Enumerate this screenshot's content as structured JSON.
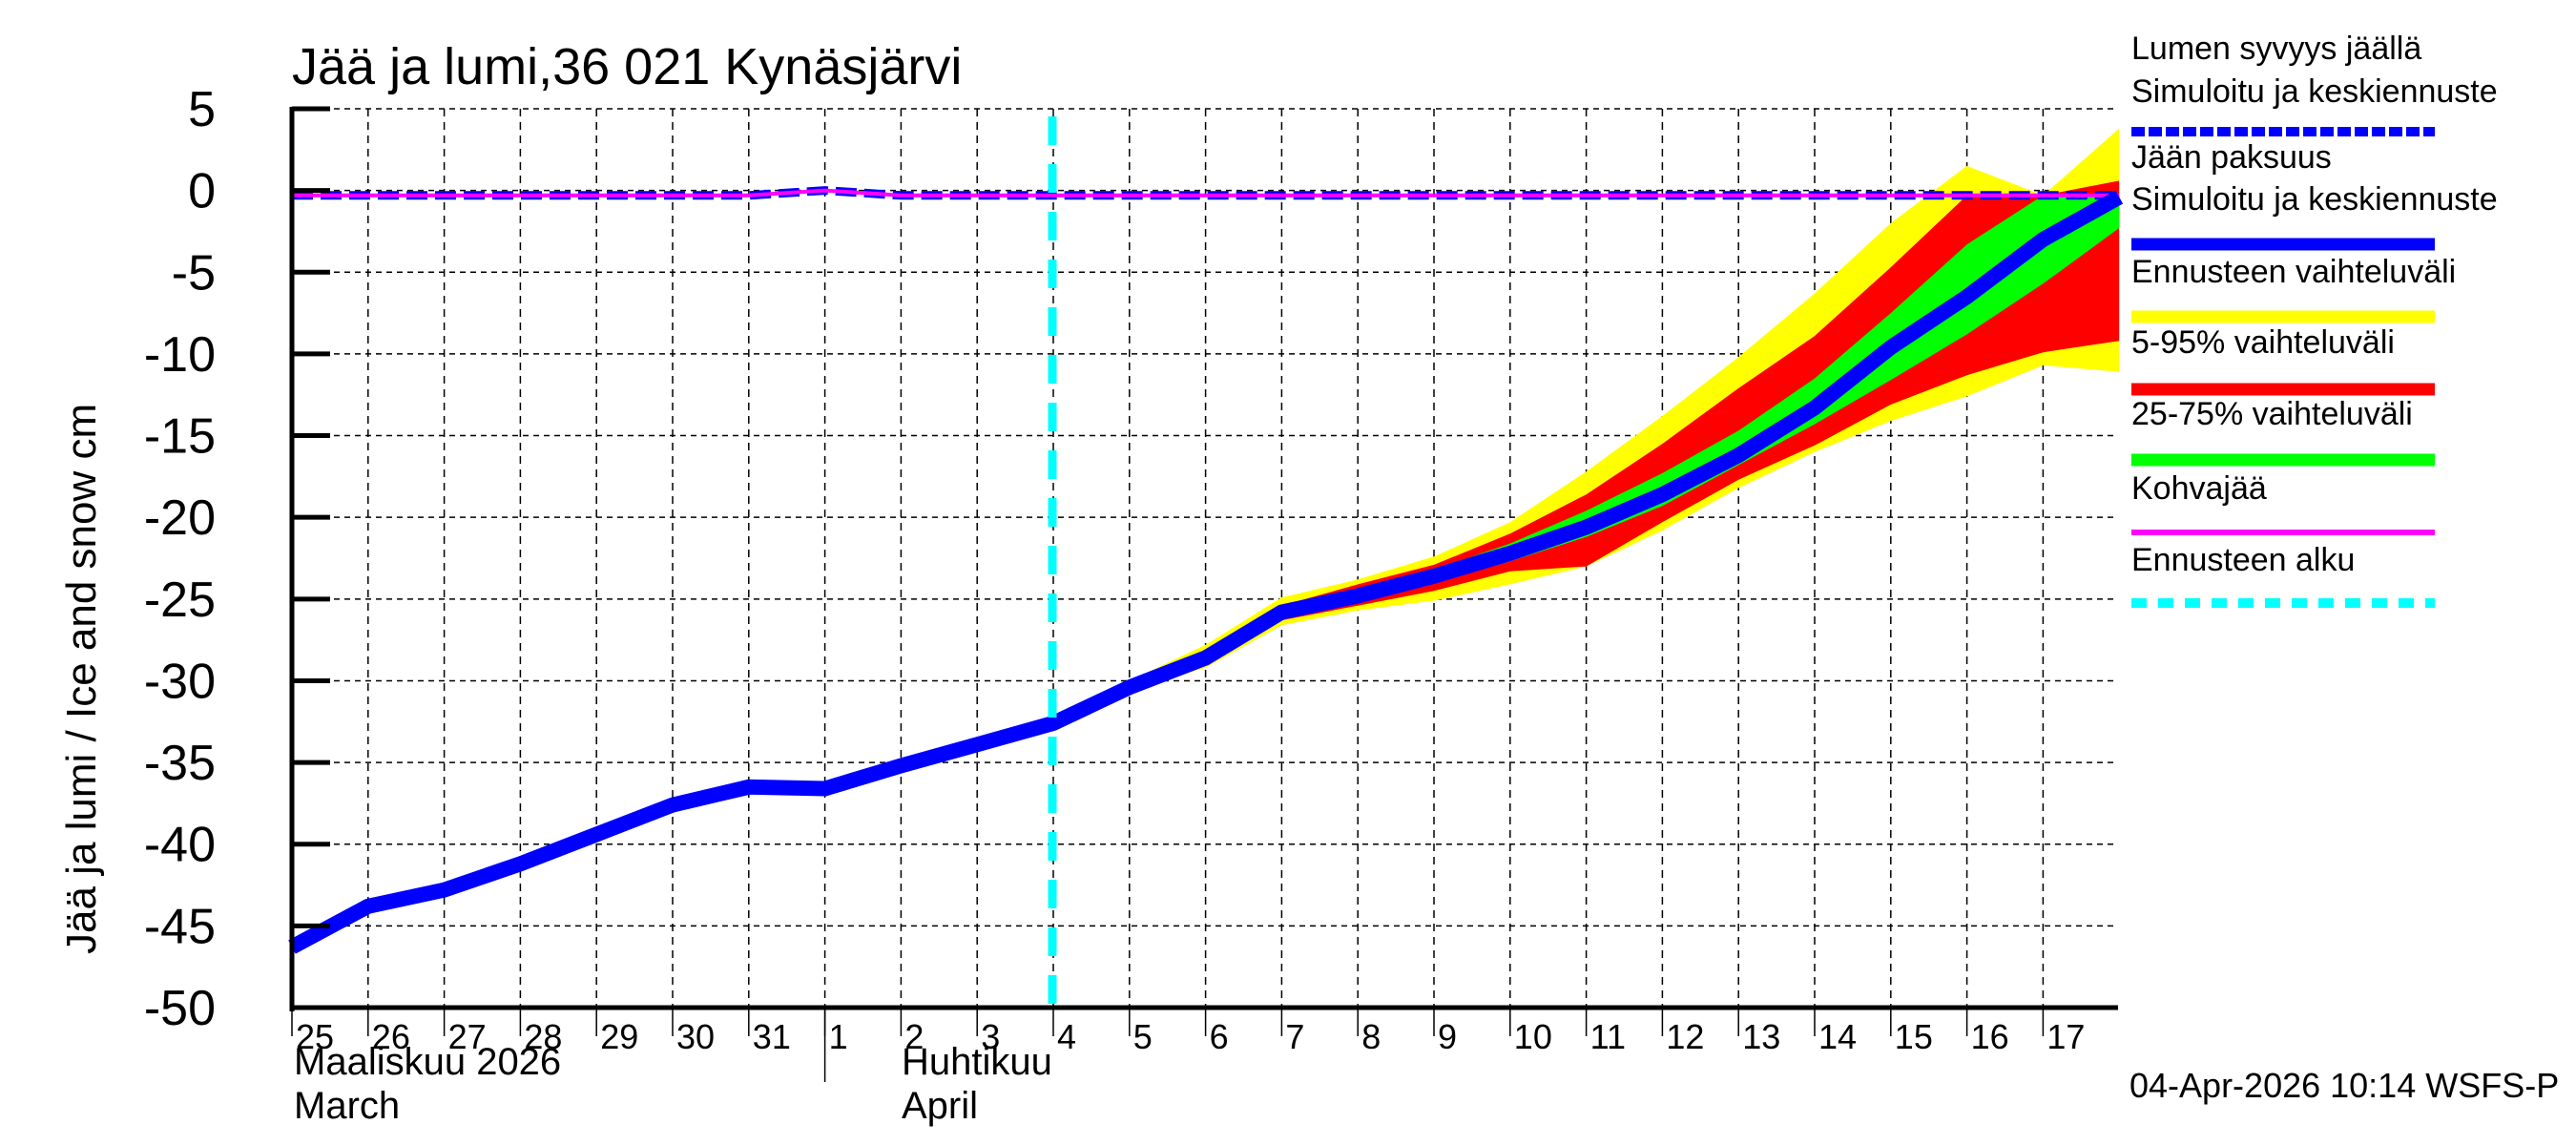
{
  "title": "Jää ja lumi,36 021 Kynäsjärvi",
  "ylabel": "Jää ja lumi / Ice and snow    cm",
  "footer": "04-Apr-2026 10:14 WSFS-P",
  "x_month_labels": [
    {
      "line1": "Maaliskuu 2026",
      "line2": "March"
    },
    {
      "line1": "Huhtikuu",
      "line2": "April"
    }
  ],
  "legend": [
    {
      "label1": "Lumen syvyys jäällä",
      "label2": "Simuloitu ja keskiennuste",
      "color": "#0000ff",
      "style": "dashed-thick"
    },
    {
      "label1": "Jään paksuus",
      "label2": "Simuloitu ja keskiennuste",
      "color": "#0000ff",
      "style": "solid-thick"
    },
    {
      "label1": "Ennusteen vaihteluväli",
      "color": "#ffff00",
      "style": "band"
    },
    {
      "label1": "5-95% vaihteluväli",
      "color": "#ff0000",
      "style": "band"
    },
    {
      "label1": "25-75% vaihteluväli",
      "color": "#00ff00",
      "style": "band"
    },
    {
      "label1": "Kohvajää",
      "color": "#ff00ff",
      "style": "solid-thin"
    },
    {
      "label1": "Ennusteen alku",
      "color": "#00ffff",
      "style": "dotted"
    }
  ],
  "chart_data": {
    "type": "line",
    "title": "Jää ja lumi,36 021 Kynäsjärvi",
    "xlabel": "",
    "ylabel": "Jää ja lumi / Ice and snow cm",
    "ylim": [
      -50,
      5
    ],
    "yticks": [
      5,
      0,
      -5,
      -10,
      -15,
      -20,
      -25,
      -30,
      -35,
      -40,
      -45,
      -50
    ],
    "grid": true,
    "legend_position": "right",
    "x": [
      "25",
      "26",
      "27",
      "28",
      "29",
      "30",
      "31",
      "1",
      "2",
      "3",
      "4",
      "5",
      "6",
      "7",
      "8",
      "9",
      "10",
      "11",
      "12",
      "13",
      "14",
      "15",
      "16",
      "17",
      "18"
    ],
    "x_tick_labels": [
      "25",
      "26",
      "27",
      "28",
      "29",
      "30",
      "31",
      "1",
      "2",
      "3",
      "4",
      "5",
      "6",
      "7",
      "8",
      "9",
      "10",
      "11",
      "12",
      "13",
      "14",
      "15",
      "16",
      "17"
    ],
    "forecast_start_x": 10.9,
    "series": [
      {
        "name": "Jään paksuus (Simuloitu ja keskiennuste)",
        "color": "#0000ff",
        "values": [
          -46.3,
          -43.8,
          -42.8,
          -41.2,
          -39.4,
          -37.6,
          -36.5,
          -36.6,
          -35.2,
          -33.9,
          -32.6,
          -30.4,
          -28.6,
          -25.8,
          -24.8,
          -23.6,
          -22.2,
          -20.6,
          -18.6,
          -16.2,
          -13.3,
          -9.6,
          -6.5,
          -3.0,
          -0.4
        ]
      },
      {
        "name": "Lumen syvyys jäällä (Simuloitu ja keskiennuste)",
        "color": "#0000ff",
        "values": [
          -0.3,
          -0.3,
          -0.3,
          -0.3,
          -0.3,
          -0.3,
          -0.3,
          0.0,
          -0.3,
          -0.3,
          -0.3,
          -0.3,
          -0.3,
          -0.3,
          -0.3,
          -0.3,
          -0.3,
          -0.3,
          -0.3,
          -0.3,
          -0.3,
          -0.3,
          -0.3,
          -0.3,
          -0.3
        ]
      },
      {
        "name": "Kohvajää",
        "color": "#ff00ff",
        "values": [
          -0.3,
          -0.3,
          -0.3,
          -0.3,
          -0.3,
          -0.3,
          -0.3,
          0.0,
          -0.3,
          -0.3,
          -0.3,
          -0.3,
          -0.3,
          -0.3,
          -0.3,
          -0.3,
          -0.3,
          -0.3,
          -0.3,
          -0.3,
          -0.3,
          -0.3,
          -0.3,
          -0.3,
          -0.3
        ]
      }
    ],
    "bands": [
      {
        "name": "Ennusteen vaihteluväli",
        "color": "#ffff00",
        "start_index": 10,
        "upper": [
          -32.6,
          -30.0,
          -27.8,
          -24.9,
          -23.8,
          -22.4,
          -20.3,
          -17.2,
          -13.8,
          -10.2,
          -6.3,
          -2.0,
          1.5,
          -0.3,
          3.8
        ],
        "lower": [
          -32.6,
          -30.6,
          -29.2,
          -26.6,
          -25.7,
          -25.1,
          -24.1,
          -23.0,
          -20.8,
          -18.2,
          -16.0,
          -14.1,
          -12.6,
          -10.7,
          -11.1
        ]
      },
      {
        "name": "5-95% vaihteluväli",
        "color": "#ff0000",
        "start_index": 10,
        "upper": [
          -32.6,
          -30.2,
          -28.2,
          -25.4,
          -24.1,
          -22.9,
          -21.0,
          -18.6,
          -15.5,
          -12.1,
          -8.9,
          -4.7,
          -0.3,
          -0.3,
          0.6
        ],
        "lower": [
          -32.6,
          -30.5,
          -28.9,
          -26.3,
          -25.4,
          -24.5,
          -23.3,
          -23.0,
          -20.3,
          -17.7,
          -15.6,
          -13.1,
          -11.3,
          -9.9,
          -9.2
        ]
      },
      {
        "name": "25-75% vaihteluväli",
        "color": "#00ff00",
        "start_index": 10,
        "upper": [
          -32.6,
          -30.3,
          -28.4,
          -25.6,
          -24.5,
          -23.2,
          -21.6,
          -19.6,
          -17.3,
          -14.7,
          -11.5,
          -7.5,
          -3.3,
          -0.3,
          -0.3
        ],
        "lower": [
          -32.6,
          -30.5,
          -28.7,
          -26.0,
          -25.0,
          -24.0,
          -22.7,
          -21.2,
          -19.3,
          -16.8,
          -14.3,
          -11.6,
          -8.8,
          -5.7,
          -2.3
        ]
      }
    ]
  }
}
